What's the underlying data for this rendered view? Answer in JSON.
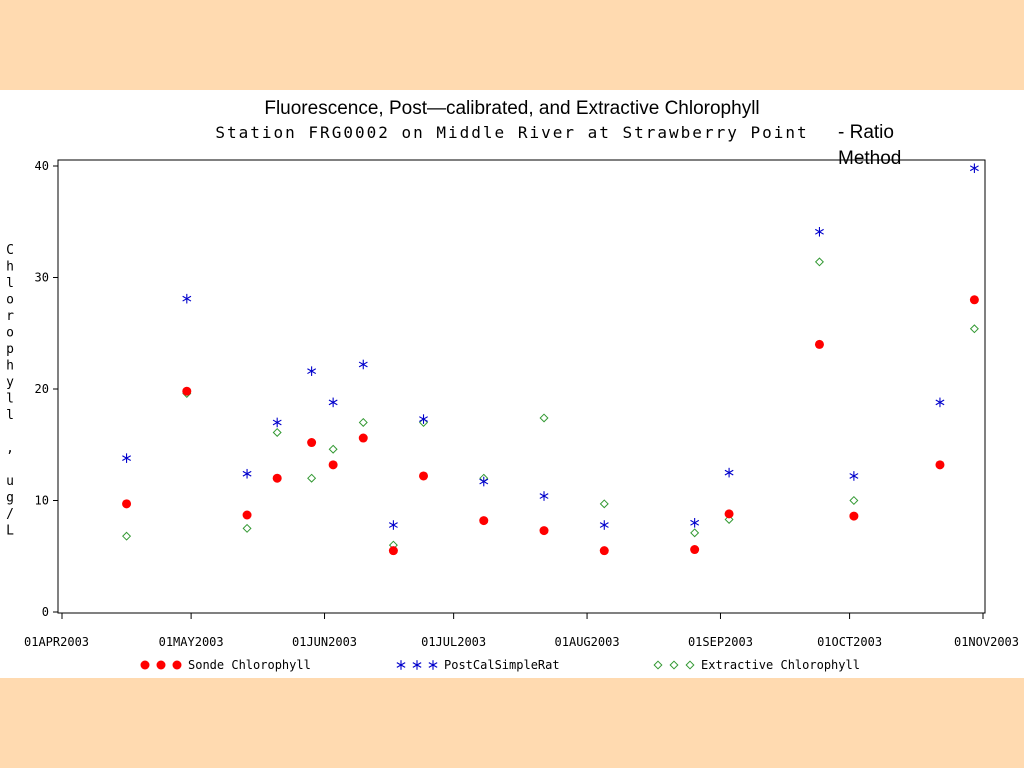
{
  "colors": {
    "page_background": "#FFDAB0",
    "panel_background": "#FFFFFF",
    "sonde": "#FF0000",
    "postcal": "#0000CC",
    "extractive": "#339933"
  },
  "overlay": {
    "line1": "- Ratio",
    "line2": "Method"
  },
  "chart_data": {
    "type": "scatter",
    "title": "Fluorescence, Post—calibrated, and Extractive Chlorophyll",
    "subtitle": "Station FRG0002 on Middle River at Strawberry Point",
    "ylabel": "Chlorophyll , ug/L",
    "xlabel": "",
    "xlim": [
      "2003-04-01",
      "2003-11-01"
    ],
    "ylim": [
      0,
      40
    ],
    "yticks": [
      0,
      10,
      20,
      30,
      40
    ],
    "xticks": [
      {
        "date": "2003-04-01",
        "label": "01APR2003"
      },
      {
        "date": "2003-05-01",
        "label": "01MAY2003"
      },
      {
        "date": "2003-06-01",
        "label": "01JUN2003"
      },
      {
        "date": "2003-07-01",
        "label": "01JUL2003"
      },
      {
        "date": "2003-08-01",
        "label": "01AUG2003"
      },
      {
        "date": "2003-09-01",
        "label": "01SEP2003"
      },
      {
        "date": "2003-10-01",
        "label": "01OCT2003"
      },
      {
        "date": "2003-11-01",
        "label": "01NOV2003"
      }
    ],
    "grid": false,
    "legend_position": "bottom",
    "series": [
      {
        "name": "Sonde Chlorophyll",
        "marker": "dot",
        "color": "#FF0000",
        "points": [
          {
            "x": "2003-04-16",
            "y": 9.7
          },
          {
            "x": "2003-04-30",
            "y": 19.8
          },
          {
            "x": "2003-05-14",
            "y": 8.7
          },
          {
            "x": "2003-05-21",
            "y": 12.0
          },
          {
            "x": "2003-05-29",
            "y": 15.2
          },
          {
            "x": "2003-06-03",
            "y": 13.2
          },
          {
            "x": "2003-06-10",
            "y": 15.6
          },
          {
            "x": "2003-06-17",
            "y": 5.5
          },
          {
            "x": "2003-06-24",
            "y": 12.2
          },
          {
            "x": "2003-07-08",
            "y": 8.2
          },
          {
            "x": "2003-07-22",
            "y": 7.3
          },
          {
            "x": "2003-08-05",
            "y": 5.5
          },
          {
            "x": "2003-08-26",
            "y": 5.6
          },
          {
            "x": "2003-09-03",
            "y": 8.8
          },
          {
            "x": "2003-09-24",
            "y": 24.0
          },
          {
            "x": "2003-10-02",
            "y": 8.6
          },
          {
            "x": "2003-10-22",
            "y": 13.2
          },
          {
            "x": "2003-10-30",
            "y": 28.0
          }
        ]
      },
      {
        "name": "PostCalSimpleRat",
        "marker": "star",
        "color": "#0000CC",
        "points": [
          {
            "x": "2003-04-16",
            "y": 13.8
          },
          {
            "x": "2003-04-30",
            "y": 28.1
          },
          {
            "x": "2003-05-14",
            "y": 12.4
          },
          {
            "x": "2003-05-21",
            "y": 17.0
          },
          {
            "x": "2003-05-29",
            "y": 21.6
          },
          {
            "x": "2003-06-03",
            "y": 18.8
          },
          {
            "x": "2003-06-10",
            "y": 22.2
          },
          {
            "x": "2003-06-17",
            "y": 7.8
          },
          {
            "x": "2003-06-24",
            "y": 17.3
          },
          {
            "x": "2003-07-08",
            "y": 11.7
          },
          {
            "x": "2003-07-22",
            "y": 10.4
          },
          {
            "x": "2003-08-05",
            "y": 7.8
          },
          {
            "x": "2003-08-26",
            "y": 8.0
          },
          {
            "x": "2003-09-03",
            "y": 12.5
          },
          {
            "x": "2003-09-24",
            "y": 34.1
          },
          {
            "x": "2003-10-02",
            "y": 12.2
          },
          {
            "x": "2003-10-22",
            "y": 18.8
          },
          {
            "x": "2003-10-30",
            "y": 39.8
          }
        ]
      },
      {
        "name": "Extractive Chlorophyll",
        "marker": "diamond",
        "color": "#339933",
        "points": [
          {
            "x": "2003-04-16",
            "y": 6.8
          },
          {
            "x": "2003-04-30",
            "y": 19.6
          },
          {
            "x": "2003-05-14",
            "y": 7.5
          },
          {
            "x": "2003-05-21",
            "y": 16.1
          },
          {
            "x": "2003-05-29",
            "y": 12.0
          },
          {
            "x": "2003-06-03",
            "y": 14.6
          },
          {
            "x": "2003-06-10",
            "y": 17.0
          },
          {
            "x": "2003-06-17",
            "y": 6.0
          },
          {
            "x": "2003-06-24",
            "y": 17.0
          },
          {
            "x": "2003-07-08",
            "y": 12.0
          },
          {
            "x": "2003-07-22",
            "y": 17.4
          },
          {
            "x": "2003-08-05",
            "y": 9.7
          },
          {
            "x": "2003-08-26",
            "y": 7.1
          },
          {
            "x": "2003-09-03",
            "y": 8.3
          },
          {
            "x": "2003-09-24",
            "y": 31.4
          },
          {
            "x": "2003-10-02",
            "y": 10.0
          },
          {
            "x": "2003-10-22",
            "y": 13.2
          },
          {
            "x": "2003-10-30",
            "y": 25.4
          }
        ]
      }
    ]
  }
}
